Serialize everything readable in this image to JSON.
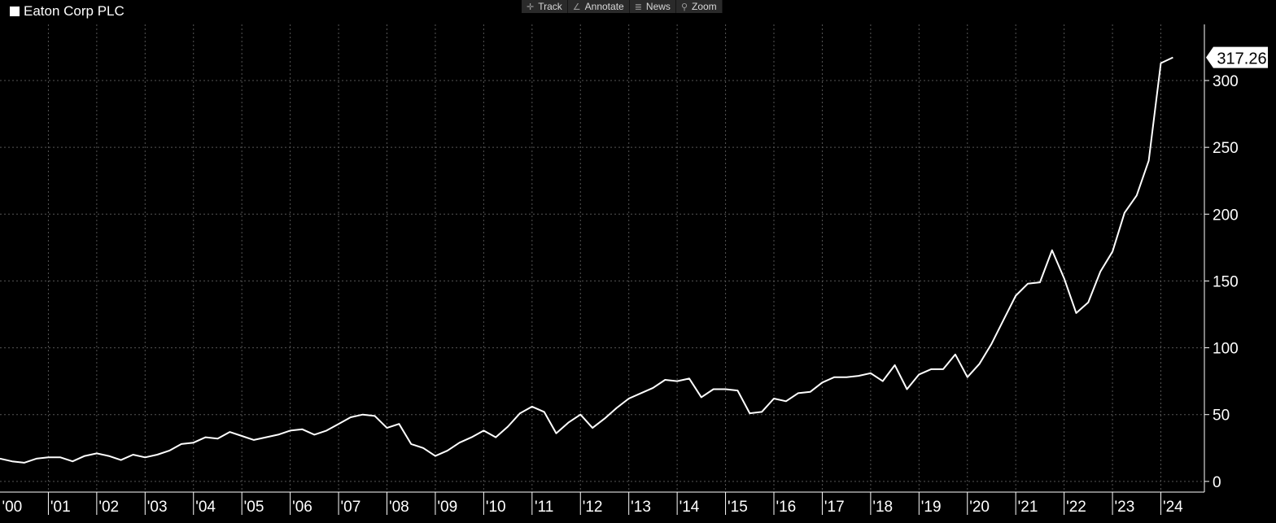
{
  "legend": {
    "label": "Eaton Corp PLC",
    "color": "#ffffff"
  },
  "toolbar": {
    "track": {
      "label": "Track",
      "icon": "crosshair-icon"
    },
    "annotate": {
      "label": "Annotate",
      "icon": "pencil-icon"
    },
    "news": {
      "label": "News",
      "icon": "news-list-icon"
    },
    "zoom": {
      "label": "Zoom",
      "icon": "magnifier-icon"
    }
  },
  "chart_data": {
    "type": "line",
    "title": "",
    "xlabel": "",
    "ylabel": "",
    "ylim": [
      -8,
      342
    ],
    "xlim": [
      2000.0,
      2024.9
    ],
    "grid": true,
    "legend_position": "top-left",
    "last_value_label": "317.26",
    "y_ticks": [
      0,
      50,
      100,
      150,
      200,
      250,
      300
    ],
    "x_ticks": [
      {
        "label": "'00",
        "value": 2000.25
      },
      {
        "label": "'01",
        "value": 2001.25
      },
      {
        "label": "'02",
        "value": 2002.25
      },
      {
        "label": "'03",
        "value": 2003.25
      },
      {
        "label": "'04",
        "value": 2004.25
      },
      {
        "label": "'05",
        "value": 2005.25
      },
      {
        "label": "'06",
        "value": 2006.25
      },
      {
        "label": "'07",
        "value": 2007.25
      },
      {
        "label": "'08",
        "value": 2008.25
      },
      {
        "label": "'09",
        "value": 2009.25
      },
      {
        "label": "'10",
        "value": 2010.25
      },
      {
        "label": "'11",
        "value": 2011.25
      },
      {
        "label": "'12",
        "value": 2012.25
      },
      {
        "label": "'13",
        "value": 2013.25
      },
      {
        "label": "'14",
        "value": 2014.25
      },
      {
        "label": "'15",
        "value": 2015.25
      },
      {
        "label": "'16",
        "value": 2016.25
      },
      {
        "label": "'17",
        "value": 2017.25
      },
      {
        "label": "'18",
        "value": 2018.25
      },
      {
        "label": "'19",
        "value": 2019.25
      },
      {
        "label": "'20",
        "value": 2020.25
      },
      {
        "label": "'21",
        "value": 2021.25
      },
      {
        "label": "'22",
        "value": 2022.25
      },
      {
        "label": "'23",
        "value": 2023.25
      },
      {
        "label": "'24",
        "value": 2024.25
      }
    ],
    "x_gridlines": [
      2001,
      2002,
      2003,
      2004,
      2005,
      2006,
      2007,
      2008,
      2009,
      2010,
      2011,
      2012,
      2013,
      2014,
      2015,
      2016,
      2017,
      2018,
      2019,
      2020,
      2021,
      2022,
      2023,
      2024
    ],
    "series": [
      {
        "name": "Eaton Corp PLC",
        "color": "#ffffff",
        "x": [
          2000.0,
          2000.25,
          2000.5,
          2000.75,
          2001.0,
          2001.25,
          2001.5,
          2001.75,
          2002.0,
          2002.25,
          2002.5,
          2002.75,
          2003.0,
          2003.25,
          2003.5,
          2003.75,
          2004.0,
          2004.25,
          2004.5,
          2004.75,
          2005.0,
          2005.25,
          2005.5,
          2005.75,
          2006.0,
          2006.25,
          2006.5,
          2006.75,
          2007.0,
          2007.25,
          2007.5,
          2007.75,
          2008.0,
          2008.25,
          2008.5,
          2008.75,
          2009.0,
          2009.25,
          2009.5,
          2009.75,
          2010.0,
          2010.25,
          2010.5,
          2010.75,
          2011.0,
          2011.25,
          2011.5,
          2011.75,
          2012.0,
          2012.25,
          2012.5,
          2012.75,
          2013.0,
          2013.25,
          2013.5,
          2013.75,
          2014.0,
          2014.25,
          2014.5,
          2014.75,
          2015.0,
          2015.25,
          2015.5,
          2015.75,
          2016.0,
          2016.25,
          2016.5,
          2016.75,
          2017.0,
          2017.25,
          2017.5,
          2017.75,
          2018.0,
          2018.25,
          2018.5,
          2018.75,
          2019.0,
          2019.25,
          2019.5,
          2019.75,
          2020.0,
          2020.25,
          2020.5,
          2020.75,
          2021.0,
          2021.25,
          2021.5,
          2021.75,
          2022.0,
          2022.25,
          2022.5,
          2022.75,
          2023.0,
          2023.25,
          2023.5,
          2023.75,
          2024.0,
          2024.25
        ],
        "y": [
          17,
          15,
          14,
          17,
          18,
          18,
          15,
          19,
          21,
          19,
          16,
          20,
          18,
          20,
          23,
          28,
          29,
          33,
          32,
          37,
          34,
          31,
          33,
          35,
          38,
          39,
          35,
          38,
          43,
          48,
          50,
          49,
          40,
          43,
          28,
          25,
          19,
          23,
          29,
          33,
          38,
          33,
          41,
          51,
          56,
          52,
          36,
          44,
          50,
          40,
          47,
          55,
          62,
          66,
          70,
          76,
          75,
          77,
          63,
          69,
          69,
          68,
          51,
          52,
          62,
          60,
          66,
          67,
          74,
          78,
          78,
          79,
          81,
          75,
          87,
          69,
          80,
          84,
          84,
          95,
          78,
          88,
          103,
          121,
          139,
          148,
          149,
          173,
          152,
          126,
          134,
          157,
          172,
          201,
          214,
          240,
          313,
          317.26
        ]
      }
    ]
  }
}
